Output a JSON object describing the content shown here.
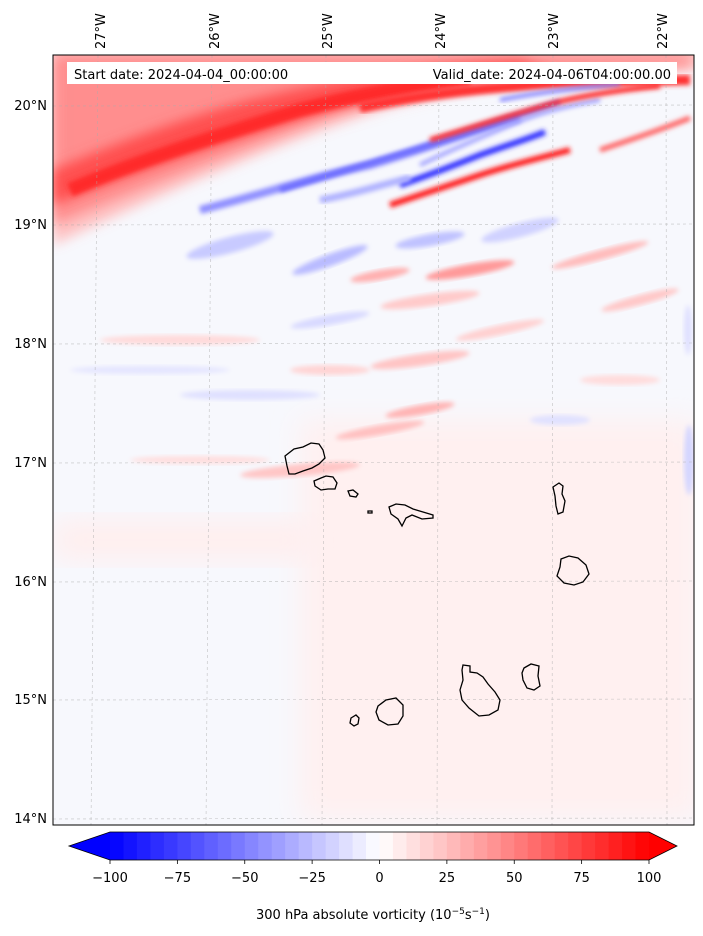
{
  "map": {
    "start_date": "Start date: 2024-04-04_00:00:00",
    "valid_date": "Valid_date: 2024-04-06T04:00:00.00",
    "lon_ticks": [
      "27°W",
      "26°W",
      "25°W",
      "24°W",
      "23°W",
      "22°W"
    ],
    "lat_ticks": [
      "20°N",
      "19°N",
      "18°N",
      "17°N",
      "16°N",
      "15°N",
      "14°N"
    ],
    "colors": {
      "negative": "#0000ff",
      "positive": "#ff0000",
      "neutral": "#ffffff",
      "coast": "#000000"
    }
  },
  "colorbar": {
    "ticks": [
      "−100",
      "−75",
      "−50",
      "−25",
      "0",
      "25",
      "50",
      "75",
      "100"
    ],
    "label_main": "300 hPa absolute vorticity (10",
    "label_exp1": "−5",
    "label_mid": "s",
    "label_exp2": "−1",
    "label_end": ")"
  }
}
